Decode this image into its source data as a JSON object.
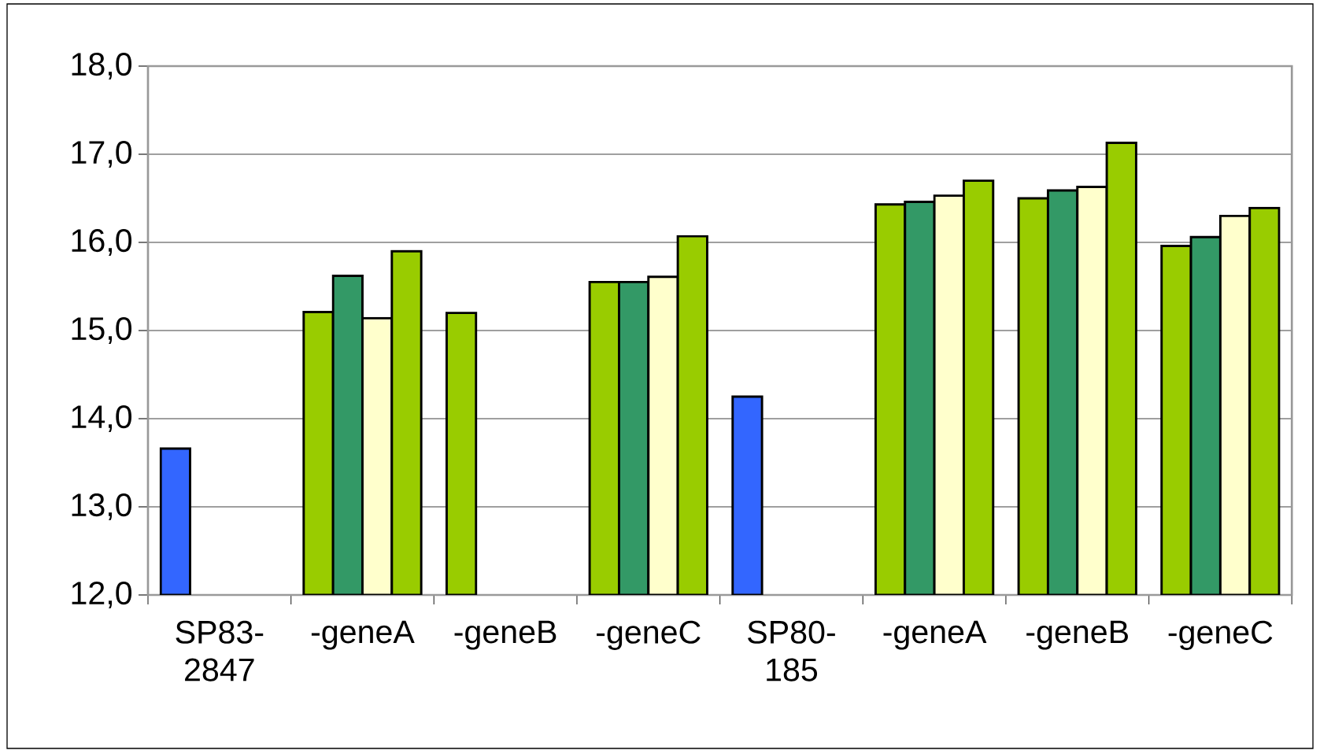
{
  "chart_data": {
    "type": "bar",
    "categories": [
      "SP83-2847",
      "-geneA",
      "-geneB",
      "-geneC",
      "SP80-185",
      "-geneA",
      "-geneB",
      "-geneC"
    ],
    "series": [
      {
        "color": "#99cc00",
        "colors": [
          "#3366ff",
          "#99cc00",
          "#99cc00",
          "#99cc00",
          "#3366ff",
          "#99cc00",
          "#99cc00",
          "#99cc00"
        ],
        "values": [
          13.66,
          15.21,
          15.2,
          15.55,
          14.25,
          16.43,
          16.5,
          15.96
        ]
      },
      {
        "color": "#339966",
        "values": [
          null,
          15.62,
          null,
          15.55,
          null,
          16.46,
          16.59,
          16.06
        ]
      },
      {
        "color": "#ffffcc",
        "values": [
          null,
          15.14,
          null,
          15.61,
          null,
          16.53,
          16.63,
          16.3
        ]
      },
      {
        "color": "#99cc00",
        "values": [
          null,
          15.9,
          null,
          16.07,
          null,
          16.7,
          17.13,
          16.39
        ]
      }
    ],
    "ylim": [
      12,
      18
    ],
    "yticks": [
      {
        "value": 12,
        "label": "12,0"
      },
      {
        "value": 13,
        "label": "13,0"
      },
      {
        "value": 14,
        "label": "14,0"
      },
      {
        "value": 15,
        "label": "15,0"
      },
      {
        "value": 16,
        "label": "16,0"
      },
      {
        "value": 17,
        "label": "17,0"
      },
      {
        "value": 18,
        "label": "18,0"
      }
    ],
    "grid": "y"
  }
}
